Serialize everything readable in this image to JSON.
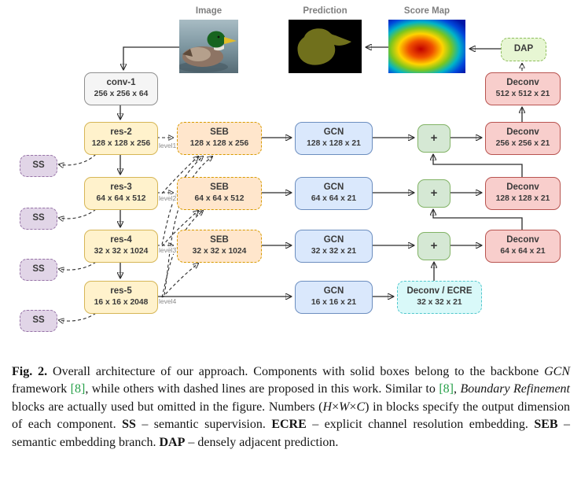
{
  "header": {
    "image_label": "Image",
    "prediction_label": "Prediction",
    "scoremap_label": "Score Map"
  },
  "nodes": {
    "conv1": {
      "title": "conv-1",
      "dim": "256 x 256 x 64"
    },
    "res2": {
      "title": "res-2",
      "dim": "128 x 128 x 256"
    },
    "res3": {
      "title": "res-3",
      "dim": "64 x 64 x 512"
    },
    "res4": {
      "title": "res-4",
      "dim": "32 x 32 x 1024"
    },
    "res5": {
      "title": "res-5",
      "dim": "16 x 16 x 2048"
    },
    "seb1": {
      "title": "SEB",
      "dim": "128 x 128 x 256"
    },
    "seb2": {
      "title": "SEB",
      "dim": "64 x 64 x 512"
    },
    "seb3": {
      "title": "SEB",
      "dim": "32 x 32 x 1024"
    },
    "gcn1": {
      "title": "GCN",
      "dim": "128 x 128 x 21"
    },
    "gcn2": {
      "title": "GCN",
      "dim": "64 x 64 x 21"
    },
    "gcn3": {
      "title": "GCN",
      "dim": "32 x 32 x 21"
    },
    "gcn4": {
      "title": "GCN",
      "dim": "16 x 16 x 21"
    },
    "deconv512": {
      "title": "Deconv",
      "dim": "512 x 512 x 21"
    },
    "deconv256": {
      "title": "Deconv",
      "dim": "256 x 256 x 21"
    },
    "deconv128": {
      "title": "Deconv",
      "dim": "128 x 128 x 21"
    },
    "deconv64": {
      "title": "Deconv",
      "dim": "64 x 64 x 21"
    },
    "ecre": {
      "title": "Deconv / ECRE",
      "dim": "32 x 32 x 21"
    },
    "dap": {
      "title": "DAP"
    },
    "ss": {
      "title": "SS"
    },
    "sum": {
      "title": "+"
    }
  },
  "levels": [
    "level1",
    "level2",
    "level3",
    "level4"
  ],
  "colors": {
    "backbone_box": "#fff2cc",
    "backbone_border": "#d6b656",
    "conv_box": "#f5f5f5",
    "seb_box": "#ffe6cc",
    "gcn_box": "#dae8fc",
    "sum_box": "#d5e8d4",
    "deconv_box": "#f8cecc",
    "ss_box": "#e1d5e7",
    "ecre_box": "#d9f9f9",
    "dap_box": "#e7f6d3",
    "citation": "#27a049"
  },
  "caption": {
    "segments": [
      {
        "style": "bold",
        "text": "Fig. 2."
      },
      {
        "style": "normal",
        "text": " Overall architecture of our approach. Components with solid boxes belong to the backbone "
      },
      {
        "style": "italic",
        "text": "GCN"
      },
      {
        "style": "normal",
        "text": " framework "
      },
      {
        "style": "ref",
        "text": "[8]"
      },
      {
        "style": "normal",
        "text": ", while others with dashed lines are proposed in this work. Similar to "
      },
      {
        "style": "ref",
        "text": "[8]"
      },
      {
        "style": "normal",
        "text": ", "
      },
      {
        "style": "italic",
        "text": "Boundary Refinement"
      },
      {
        "style": "normal",
        "text": " blocks are actually used but omitted in the figure. Numbers ("
      },
      {
        "style": "italic",
        "text": "H"
      },
      {
        "style": "normal",
        "text": "×"
      },
      {
        "style": "italic",
        "text": "W"
      },
      {
        "style": "normal",
        "text": "×"
      },
      {
        "style": "italic",
        "text": "C"
      },
      {
        "style": "normal",
        "text": ") in blocks specify the output dimension of each component. "
      },
      {
        "style": "bold",
        "text": "SS"
      },
      {
        "style": "normal",
        "text": " – semantic supervision. "
      },
      {
        "style": "bold",
        "text": "ECRE"
      },
      {
        "style": "normal",
        "text": " – explicit channel resolution embedding. "
      },
      {
        "style": "bold",
        "text": "SEB"
      },
      {
        "style": "normal",
        "text": " – semantic embedding branch. "
      },
      {
        "style": "bold",
        "text": "DAP"
      },
      {
        "style": "normal",
        "text": " – densely adjacent prediction."
      }
    ]
  }
}
